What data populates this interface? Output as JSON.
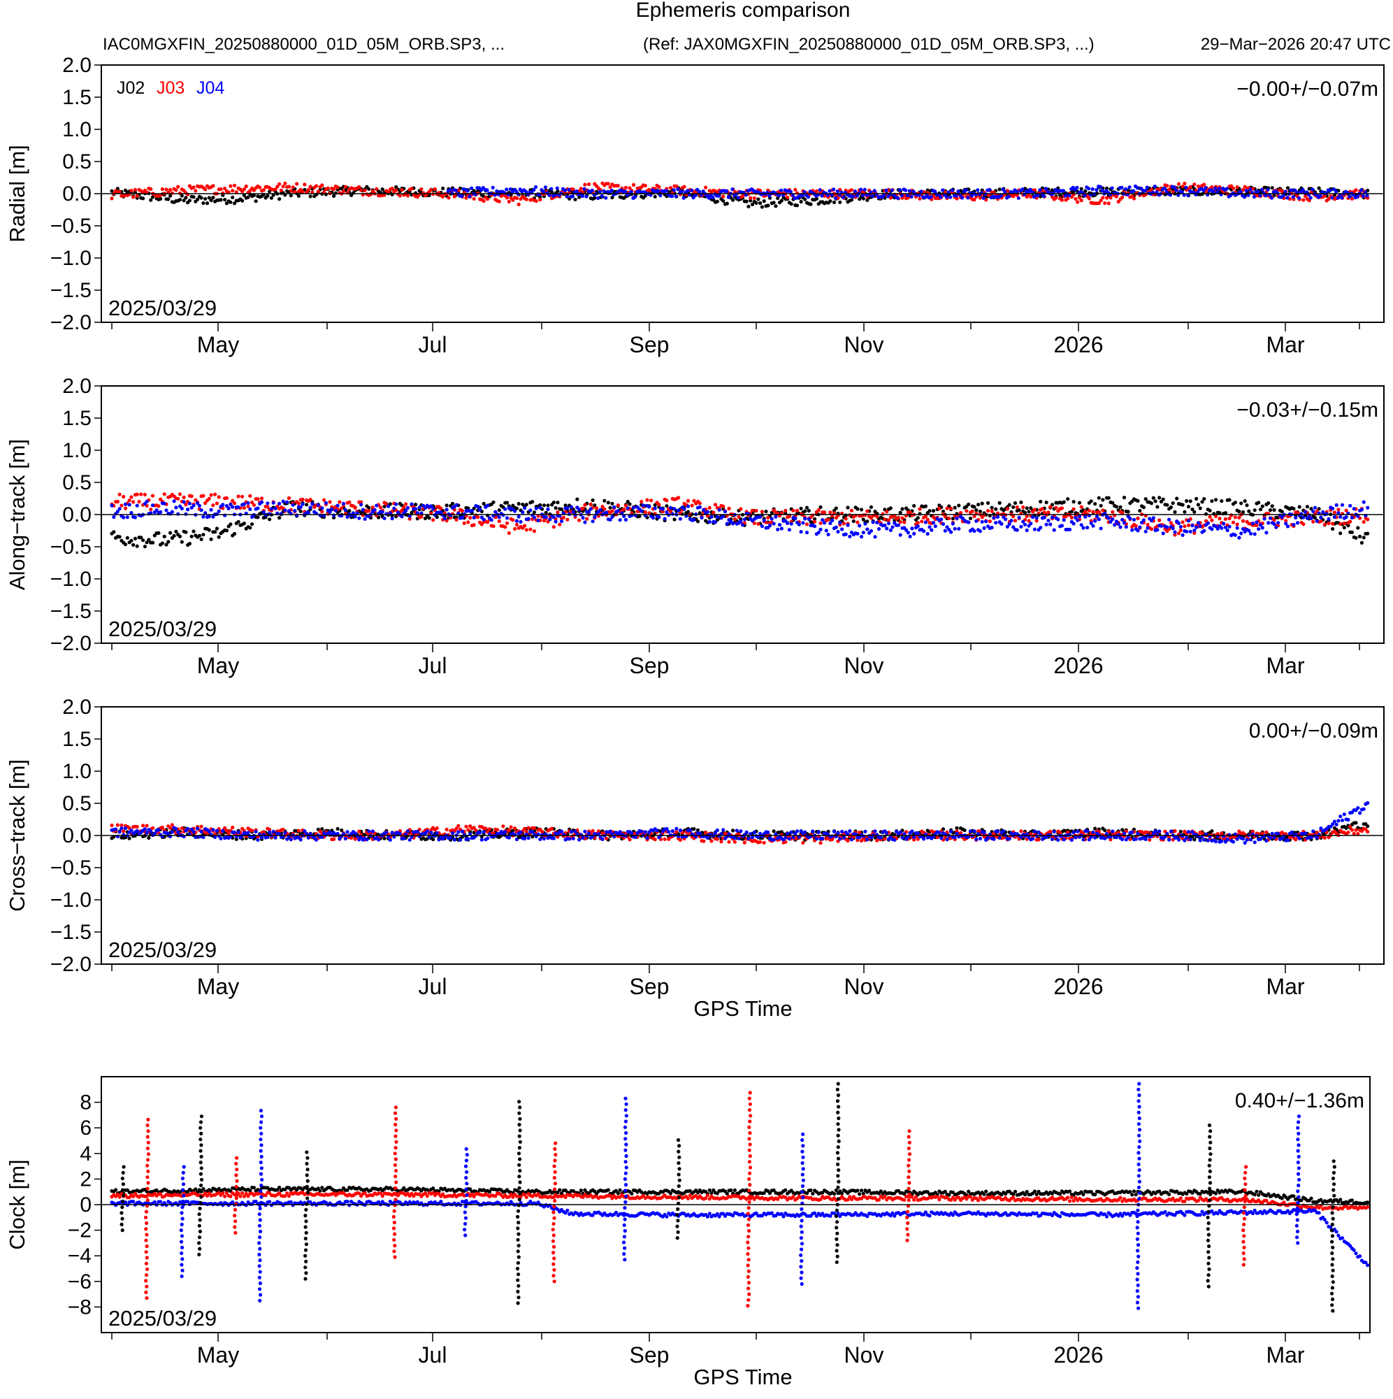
{
  "header": {
    "title": "Ephemeris comparison",
    "test_file": "IAC0MGXFIN_20250880000_01D_05M_ORB.SP3, ...",
    "ref_file": "(Ref: JAX0MGXFIN_20250880000_01D_05M_ORB.SP3, ...)",
    "timestamp": "29−Mar−2026 20:47 UTC"
  },
  "legend": [
    {
      "name": "J02",
      "color": "#000000"
    },
    {
      "name": "J03",
      "color": "#ff0000"
    },
    {
      "name": "J04",
      "color": "#0000ff"
    }
  ],
  "chart_data": [
    {
      "type": "scatter",
      "title": "Radial",
      "ylabel": "Radial [m]",
      "xlabel": "",
      "ylim": [
        -2.0,
        2.0
      ],
      "yticks": [
        "2.0",
        "1.5",
        "1.0",
        "0.5",
        "0.0",
        "−0.5",
        "−1.0",
        "−1.5",
        "−2.0"
      ],
      "ytick_values": [
        2.0,
        1.5,
        1.0,
        0.5,
        0.0,
        -0.5,
        -1.0,
        -1.5,
        -2.0
      ],
      "xticks": [
        "May",
        "Jul",
        "Sep",
        "Nov",
        "2026",
        "Mar"
      ],
      "date_label": "2025/03/29",
      "stat": "−0.00+/−0.07m",
      "series": [
        {
          "name": "J02",
          "x_days": [
            0,
            20,
            35,
            50,
            70,
            95,
            115,
            135,
            160,
            180,
            200,
            220,
            240,
            260,
            280,
            300,
            320,
            340,
            355
          ],
          "values": [
            0.02,
            -0.1,
            -0.08,
            0.0,
            0.05,
            0.02,
            0.0,
            -0.03,
            0.02,
            -0.15,
            -0.1,
            0.0,
            0.0,
            0.02,
            0.03,
            0.04,
            0.03,
            0.02,
            0.0
          ]
        },
        {
          "name": "J03",
          "x_days": [
            0,
            20,
            35,
            50,
            70,
            95,
            115,
            135,
            160,
            180,
            200,
            220,
            240,
            260,
            280,
            300,
            320,
            340,
            355
          ],
          "values": [
            -0.02,
            0.05,
            0.08,
            0.1,
            0.05,
            0.0,
            -0.1,
            0.1,
            0.05,
            0.0,
            0.0,
            0.0,
            -0.05,
            0.0,
            -0.1,
            0.1,
            0.05,
            -0.05,
            0.0
          ]
        },
        {
          "name": "J04",
          "x_days": [
            95,
            115,
            135,
            160,
            180,
            200,
            220,
            240,
            260,
            280,
            300,
            320,
            340,
            355
          ],
          "values": [
            0.0,
            0.05,
            0.0,
            0.0,
            0.0,
            0.0,
            0.0,
            0.0,
            0.0,
            0.05,
            0.05,
            0.0,
            0.0,
            0.0
          ]
        }
      ]
    },
    {
      "type": "scatter",
      "title": "Along-track",
      "ylabel": "Along−track [m]",
      "xlabel": "",
      "ylim": [
        -2.0,
        2.0
      ],
      "yticks": [
        "2.0",
        "1.5",
        "1.0",
        "0.5",
        "0.0",
        "−0.5",
        "−1.0",
        "−1.5",
        "−2.0"
      ],
      "ytick_values": [
        2.0,
        1.5,
        1.0,
        0.5,
        0.0,
        -0.5,
        -1.0,
        -1.5,
        -2.0
      ],
      "xticks": [
        "May",
        "Jul",
        "Sep",
        "Nov",
        "2026",
        "Mar"
      ],
      "date_label": "2025/03/29",
      "stat": "−0.03+/−0.15m",
      "series": [
        {
          "name": "J02",
          "x_days": [
            0,
            15,
            30,
            50,
            70,
            95,
            115,
            135,
            160,
            180,
            200,
            220,
            240,
            260,
            280,
            300,
            320,
            340,
            355
          ],
          "values": [
            -0.35,
            -0.4,
            -0.3,
            0.1,
            0.05,
            0.05,
            0.1,
            0.15,
            0.0,
            -0.05,
            0.0,
            0.0,
            0.05,
            0.1,
            0.15,
            0.15,
            0.1,
            0.0,
            -0.4
          ]
        },
        {
          "name": "J03",
          "x_days": [
            0,
            15,
            30,
            50,
            70,
            95,
            115,
            135,
            160,
            180,
            200,
            220,
            240,
            260,
            280,
            300,
            320,
            340,
            355
          ],
          "values": [
            0.2,
            0.2,
            0.2,
            0.15,
            0.1,
            0.0,
            -0.2,
            0.05,
            0.15,
            -0.05,
            -0.05,
            -0.05,
            0.0,
            0.0,
            0.0,
            -0.2,
            -0.1,
            -0.05,
            0.0
          ]
        },
        {
          "name": "J04",
          "x_days": [
            0,
            15,
            30,
            50,
            70,
            95,
            115,
            135,
            160,
            180,
            200,
            220,
            240,
            260,
            280,
            300,
            320,
            340,
            355
          ],
          "values": [
            0.05,
            0.1,
            0.05,
            0.1,
            0.05,
            0.05,
            0.0,
            0.0,
            0.05,
            -0.1,
            -0.2,
            -0.25,
            -0.15,
            -0.15,
            -0.1,
            -0.2,
            -0.25,
            0.0,
            0.1
          ]
        }
      ]
    },
    {
      "type": "scatter",
      "title": "Cross-track",
      "ylabel": "Cross−track [m]",
      "xlabel": "GPS Time",
      "ylim": [
        -2.0,
        2.0
      ],
      "yticks": [
        "2.0",
        "1.5",
        "1.0",
        "0.5",
        "0.0",
        "−0.5",
        "−1.0",
        "−1.5",
        "−2.0"
      ],
      "ytick_values": [
        2.0,
        1.5,
        1.0,
        0.5,
        0.0,
        -0.5,
        -1.0,
        -1.5,
        -2.0
      ],
      "xticks": [
        "May",
        "Jul",
        "Sep",
        "Nov",
        "2026",
        "Mar"
      ],
      "date_label": "2025/03/29",
      "stat": "0.00+/−0.09m",
      "series": [
        {
          "name": "J02",
          "x_days": [
            0,
            20,
            40,
            60,
            80,
            100,
            120,
            140,
            160,
            180,
            200,
            220,
            240,
            260,
            280,
            300,
            320,
            340,
            355
          ],
          "values": [
            0.0,
            0.05,
            0.0,
            0.05,
            0.0,
            0.0,
            0.05,
            0.0,
            0.05,
            0.0,
            0.0,
            0.0,
            0.05,
            0.0,
            0.05,
            0.0,
            0.0,
            0.0,
            0.2
          ]
        },
        {
          "name": "J03",
          "x_days": [
            0,
            20,
            40,
            60,
            80,
            100,
            120,
            140,
            160,
            180,
            200,
            220,
            240,
            260,
            280,
            300,
            320,
            340,
            355
          ],
          "values": [
            0.1,
            0.1,
            0.05,
            0.0,
            0.0,
            0.1,
            0.05,
            0.0,
            0.0,
            -0.05,
            -0.05,
            0.0,
            0.0,
            0.0,
            0.0,
            0.0,
            0.0,
            0.0,
            0.1
          ]
        },
        {
          "name": "J04",
          "x_days": [
            0,
            20,
            40,
            60,
            80,
            100,
            120,
            140,
            160,
            180,
            200,
            220,
            240,
            260,
            280,
            300,
            320,
            340,
            355
          ],
          "values": [
            0.05,
            0.05,
            0.0,
            0.0,
            0.0,
            0.0,
            0.0,
            0.0,
            0.05,
            0.0,
            0.0,
            0.0,
            0.0,
            0.0,
            0.0,
            0.0,
            -0.05,
            0.0,
            0.5
          ]
        }
      ]
    },
    {
      "type": "scatter",
      "title": "Clock",
      "ylabel": "Clock [m]",
      "xlabel": "GPS Time",
      "ylim": [
        -10,
        10
      ],
      "yticks": [
        "8",
        "6",
        "4",
        "2",
        "0",
        "−2",
        "−4",
        "−6",
        "−8"
      ],
      "ytick_values": [
        8,
        6,
        4,
        2,
        0,
        -2,
        -4,
        -6,
        -8
      ],
      "xticks": [
        "May",
        "Jul",
        "Sep",
        "Nov",
        "2026",
        "Mar"
      ],
      "date_label": "2025/03/29",
      "stat": "0.40+/−1.36m",
      "series": [
        {
          "name": "J02",
          "x_days": [
            0,
            40,
            80,
            120,
            160,
            200,
            240,
            280,
            320,
            340,
            355
          ],
          "values": [
            1.0,
            1.2,
            1.2,
            1.0,
            1.0,
            1.0,
            0.9,
            0.9,
            1.0,
            0.3,
            0.2
          ]
        },
        {
          "name": "J03",
          "x_days": [
            0,
            40,
            80,
            120,
            160,
            200,
            240,
            280,
            320,
            340,
            355
          ],
          "values": [
            0.7,
            0.8,
            0.8,
            0.7,
            0.6,
            0.5,
            0.5,
            0.4,
            0.4,
            -0.2,
            -0.3
          ]
        },
        {
          "name": "J04",
          "x_days": [
            0,
            40,
            80,
            120,
            130,
            160,
            200,
            240,
            280,
            320,
            340,
            355
          ],
          "values": [
            0.1,
            0.1,
            0.1,
            0.1,
            -0.7,
            -0.8,
            -0.8,
            -0.7,
            -0.8,
            -0.6,
            -0.5,
            -4.8
          ]
        }
      ],
      "spikes_days": [
        3,
        10,
        20,
        25,
        35,
        42,
        55,
        80,
        100,
        115,
        125,
        145,
        160,
        180,
        195,
        205,
        225,
        290,
        310,
        320,
        335,
        345
      ]
    }
  ]
}
